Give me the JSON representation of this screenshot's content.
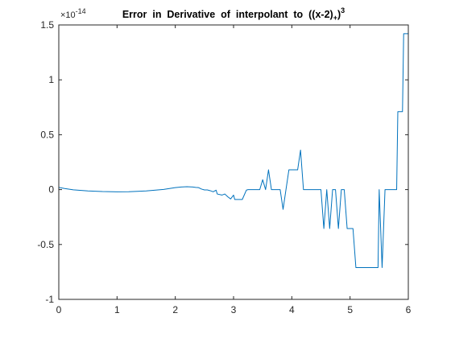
{
  "chart_data": {
    "type": "line",
    "title": {
      "main": "Error  in  Derivative  of  interpolant  to  ((x-2)",
      "subscript": "+",
      "close": ")",
      "superscript": "3"
    },
    "xlabel": "",
    "ylabel": "",
    "xlim": [
      0,
      6
    ],
    "ylim": [
      -1,
      1.5
    ],
    "y_exponent": {
      "base": "×10",
      "power": "-14"
    },
    "x_ticks": [
      0,
      1,
      2,
      3,
      4,
      5,
      6
    ],
    "y_ticks": [
      -1,
      -0.5,
      0,
      0.5,
      1,
      1.5
    ],
    "x_tick_labels": [
      "0",
      "1",
      "2",
      "3",
      "4",
      "5",
      "6"
    ],
    "y_tick_labels": [
      "-1",
      "-0.5",
      "0",
      "0.5",
      "1",
      "1.5"
    ],
    "grid": false,
    "box": true,
    "series": [
      {
        "color": "#0072bd",
        "x": [
          0,
          0.1,
          0.25,
          0.5,
          0.75,
          1.0,
          1.2,
          1.5,
          1.8,
          2.0,
          2.1,
          2.2,
          2.3,
          2.35,
          2.4,
          2.45,
          2.5,
          2.55,
          2.6,
          2.65,
          2.7,
          2.72,
          2.8,
          2.85,
          2.9,
          2.95,
          3.0,
          3.02,
          3.08,
          3.1,
          3.15,
          3.22,
          3.25,
          3.3,
          3.45,
          3.5,
          3.55,
          3.6,
          3.65,
          3.7,
          3.8,
          3.85,
          3.9,
          3.95,
          4.0,
          4.1,
          4.15,
          4.2,
          4.3,
          4.5,
          4.55,
          4.6,
          4.65,
          4.7,
          4.75,
          4.8,
          4.85,
          4.9,
          4.95,
          5.0,
          5.05,
          5.1,
          5.2,
          5.3,
          5.48,
          5.5,
          5.55,
          5.6,
          5.8,
          5.82,
          5.85,
          5.88,
          5.9,
          5.92,
          5.95,
          6.0
        ],
        "y": [
          0.02,
          0.01,
          -0.002,
          -0.012,
          -0.018,
          -0.02,
          -0.019,
          -0.012,
          0.002,
          0.018,
          0.024,
          0.026,
          0.024,
          0.02,
          0.018,
          0.005,
          -0.003,
          -0.003,
          -0.01,
          -0.02,
          -0.005,
          -0.04,
          -0.05,
          -0.04,
          -0.065,
          -0.085,
          -0.05,
          -0.09,
          -0.09,
          -0.09,
          -0.09,
          -0.005,
          0,
          0,
          0,
          0.09,
          0,
          0.18,
          0,
          0,
          0,
          -0.18,
          0,
          0.18,
          0.18,
          0.18,
          0.36,
          0,
          0,
          0,
          -0.355,
          0,
          -0.355,
          0,
          0,
          -0.355,
          0,
          0,
          -0.355,
          -0.355,
          -0.355,
          -0.71,
          -0.71,
          -0.71,
          -0.71,
          0,
          -0.71,
          0,
          0,
          0.71,
          0.71,
          0.71,
          0.71,
          1.42,
          1.42,
          1.42
        ]
      }
    ]
  }
}
